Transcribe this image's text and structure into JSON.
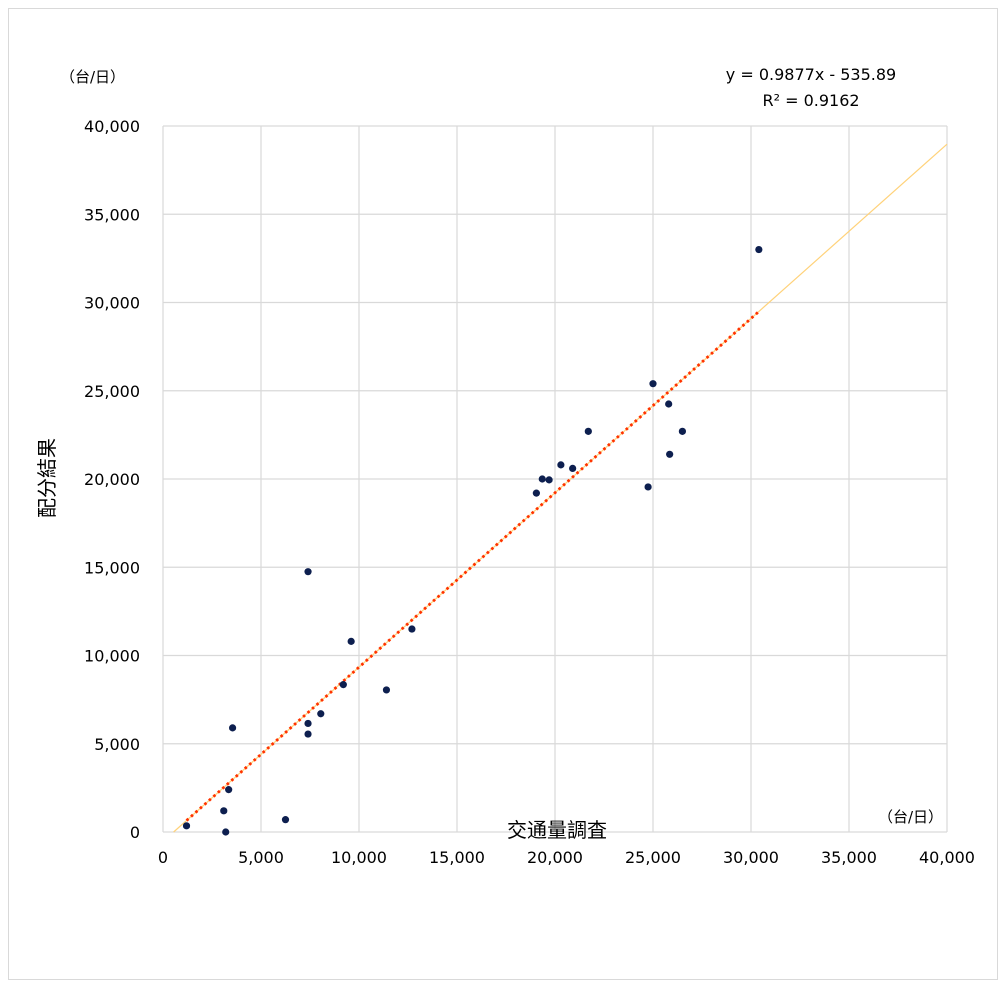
{
  "chart_data": {
    "type": "scatter",
    "title": "",
    "xlabel": "交通量調査",
    "ylabel": "配分結果",
    "x_unit": "（台/日）",
    "y_unit": "（台/日）",
    "xlim": [
      0,
      40000
    ],
    "ylim": [
      0,
      40000
    ],
    "x_ticks": [
      "0",
      "5,000",
      "10,000",
      "15,000",
      "20,000",
      "25,000",
      "30,000",
      "35,000",
      "40,000"
    ],
    "y_ticks": [
      "0",
      "5,000",
      "10,000",
      "15,000",
      "20,000",
      "25,000",
      "30,000",
      "35,000",
      "40,000"
    ],
    "grid": true,
    "legend": "none",
    "points": [
      {
        "x": 1200,
        "y": 350
      },
      {
        "x": 3100,
        "y": 1200
      },
      {
        "x": 3200,
        "y": 0
      },
      {
        "x": 3350,
        "y": 2400
      },
      {
        "x": 3550,
        "y": 5900
      },
      {
        "x": 6250,
        "y": 700
      },
      {
        "x": 7400,
        "y": 14750
      },
      {
        "x": 7400,
        "y": 6150
      },
      {
        "x": 7400,
        "y": 5550
      },
      {
        "x": 8050,
        "y": 6700
      },
      {
        "x": 9200,
        "y": 8350
      },
      {
        "x": 9600,
        "y": 10800
      },
      {
        "x": 11400,
        "y": 8050
      },
      {
        "x": 12700,
        "y": 11500
      },
      {
        "x": 19050,
        "y": 19200
      },
      {
        "x": 19350,
        "y": 20000
      },
      {
        "x": 19700,
        "y": 19950
      },
      {
        "x": 20300,
        "y": 20800
      },
      {
        "x": 20900,
        "y": 20600
      },
      {
        "x": 21700,
        "y": 22700
      },
      {
        "x": 24750,
        "y": 19550
      },
      {
        "x": 25000,
        "y": 25400
      },
      {
        "x": 25800,
        "y": 24250
      },
      {
        "x": 25850,
        "y": 21400
      },
      {
        "x": 26500,
        "y": 22700
      },
      {
        "x": 30400,
        "y": 33000
      }
    ],
    "trendline": {
      "slope": 0.9877,
      "intercept": -535.89,
      "x_range": [
        1200,
        30400
      ],
      "style": "dotted",
      "color": "#ff3300",
      "equation": "y = 0.9877x - 535.89",
      "r_squared": "R² = 0.9162"
    },
    "reference_line": {
      "slope": 0.9877,
      "intercept": -535.89,
      "color": "#ffd27a"
    },
    "marker_color": "#0d1f4f",
    "grid_color": "#d9d9d9"
  }
}
